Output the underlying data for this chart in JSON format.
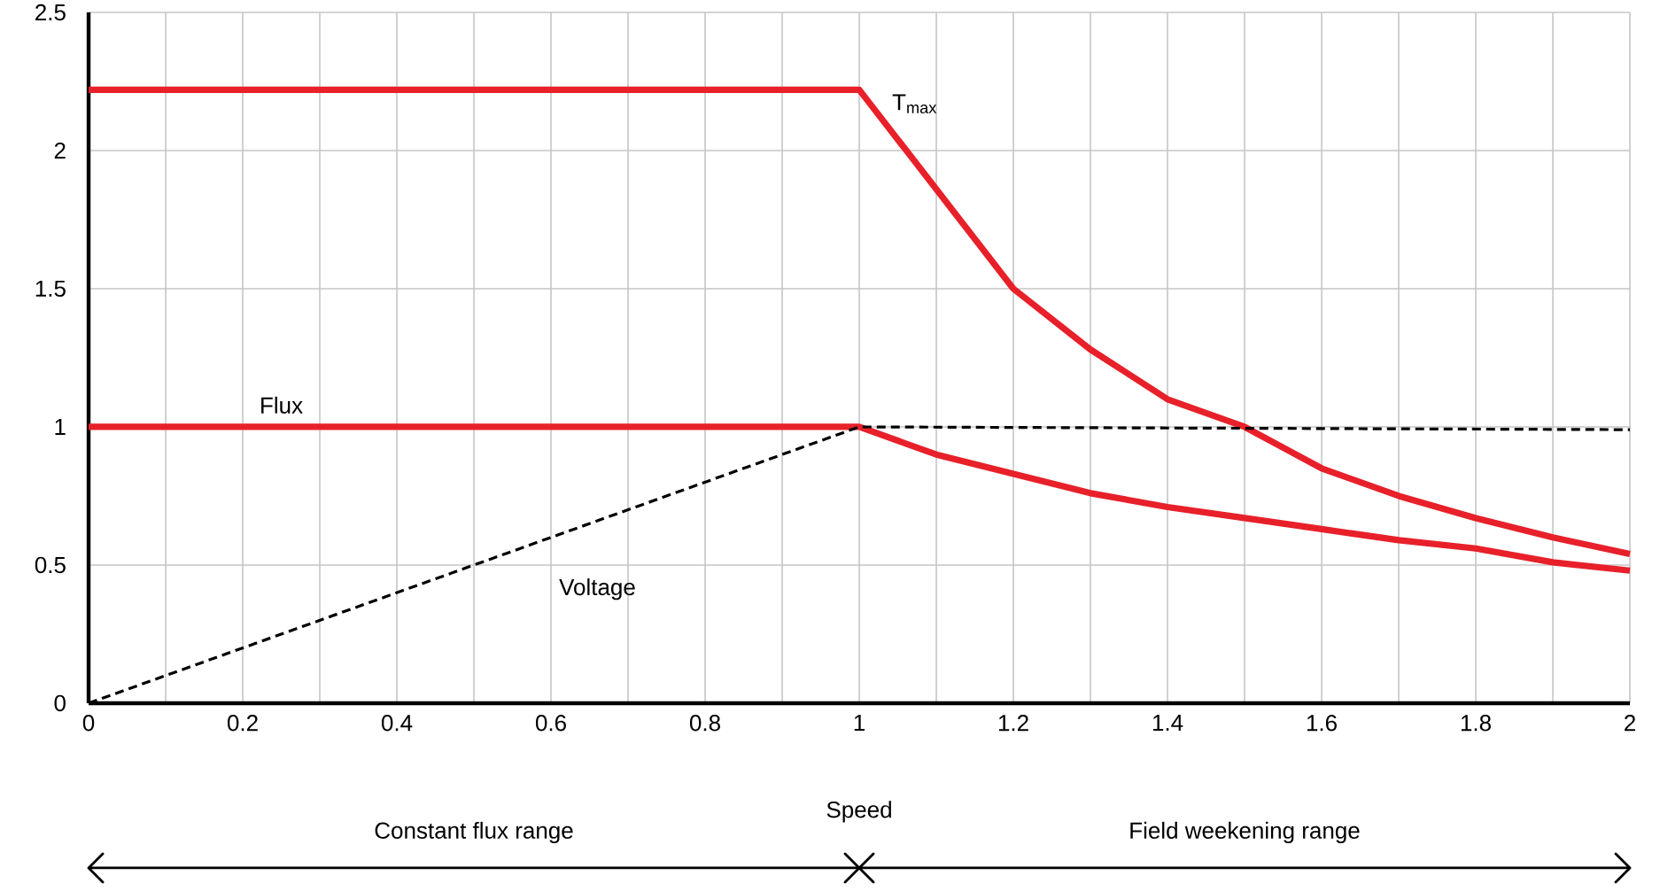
{
  "chart_data": {
    "type": "line",
    "xlabel": "Speed",
    "xlim": [
      0,
      2
    ],
    "ylim": [
      0,
      2.5
    ],
    "xticks": [
      0,
      {
        "value": 0.1,
        "label": null
      },
      0.2,
      {
        "value": 0.3,
        "label": null
      },
      0.4,
      {
        "value": 0.5,
        "label": null
      },
      0.6,
      {
        "value": 0.7,
        "label": null
      },
      0.8,
      {
        "value": 0.9,
        "label": null
      },
      1,
      {
        "value": 1.1,
        "label": null
      },
      1.2,
      {
        "value": 1.3,
        "label": null
      },
      1.4,
      {
        "value": 1.5,
        "label": null
      },
      1.6,
      {
        "value": 1.7,
        "label": null
      },
      1.8,
      {
        "value": 1.9,
        "label": null
      },
      2
    ],
    "yticks": [
      0,
      0.5,
      1,
      1.5,
      2,
      2.5
    ],
    "grid": true,
    "series": [
      {
        "name": "T$_{max}$",
        "color": "#e8202a",
        "line_style": "solid",
        "x": [
          0,
          1,
          1.1,
          1.2,
          1.3,
          1.4,
          1.5,
          1.6,
          1.7,
          1.8,
          1.9,
          2
        ],
        "values": [
          2.22,
          2.22,
          1.86,
          1.5,
          1.28,
          1.1,
          1.0,
          0.85,
          0.75,
          0.67,
          0.6,
          0.54
        ]
      },
      {
        "name": "Flux",
        "color": "#e8202a",
        "line_style": "solid",
        "x": [
          0,
          1,
          1.1,
          1.2,
          1.3,
          1.4,
          1.5,
          1.6,
          1.7,
          1.8,
          1.9,
          2
        ],
        "values": [
          1,
          1,
          0.9,
          0.83,
          0.76,
          0.71,
          0.67,
          0.63,
          0.59,
          0.56,
          0.51,
          0.48
        ]
      },
      {
        "name": "Voltage",
        "color": "#000000",
        "line_style": "dashed",
        "x": [
          0,
          1,
          2
        ],
        "values": [
          0,
          1,
          0.99
        ]
      }
    ],
    "annotations": [
      "Constant flux range",
      "Field weekening range"
    ]
  }
}
